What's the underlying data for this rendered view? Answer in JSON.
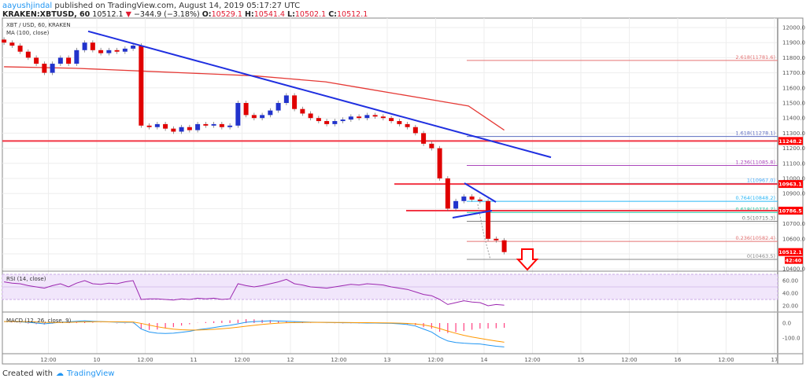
{
  "header": {
    "author": "aayushjindal",
    "published": "published on TradingView.com, August 14, 2019 05:17:27 UTC",
    "symbol": "KRAKEN:XBTUSD, 60",
    "last": "10512.1",
    "change": "−344.9 (−3.18%)",
    "o_label": "O:",
    "o": "10529.1",
    "h_label": "H:",
    "h": "10541.4",
    "l_label": "L:",
    "l": "10502.1",
    "c_label": "C:",
    "c": "10512.1"
  },
  "legend": {
    "title": "XBT / USD, 60, KRAKEN",
    "ma": "MA (100, close)",
    "rsi": "RSI (14, close)",
    "macd": "MACD (12, 26, close, 9)"
  },
  "footer": {
    "created": "Created with",
    "brand": "TradingView"
  },
  "colors": {
    "up": "#2233cc",
    "down": "#e00000",
    "ma": "#e53935",
    "trend": "#1f2fe0",
    "hline": "#f23645",
    "rsi": "#9c27b0",
    "macd": "#2196f3",
    "signal": "#ff9800",
    "hist": "#ff4081"
  },
  "chart_data": {
    "type": "candlestick",
    "interval_shown": "60",
    "price_ticks": [
      12000.0,
      11900.0,
      11800.0,
      11700.0,
      11600.0,
      11500.0,
      11400.0,
      11300.0,
      11200.0,
      11100.0,
      11000.0,
      10900.0,
      10700.0,
      10600.0,
      10400.0
    ],
    "price_ylim": [
      10400,
      12000
    ],
    "time_ticks": [
      "12:00",
      "10",
      "12:00",
      "11",
      "12:00",
      "12",
      "12:00",
      "13",
      "12:00",
      "14",
      "12:00",
      "15",
      "12:00",
      "16",
      "12:00",
      "17"
    ],
    "closes": [
      11900,
      11880,
      11840,
      11800,
      11760,
      11700,
      11760,
      11800,
      11760,
      11850,
      11900,
      11850,
      11830,
      11850,
      11840,
      11860,
      11880,
      11350,
      11340,
      11360,
      11330,
      11310,
      11340,
      11320,
      11360,
      11350,
      11360,
      11340,
      11350,
      11500,
      11420,
      11400,
      11420,
      11450,
      11500,
      11550,
      11460,
      11430,
      11400,
      11380,
      11360,
      11380,
      11390,
      11410,
      11400,
      11420,
      11410,
      11400,
      11380,
      11360,
      11340,
      11300,
      11230,
      11200,
      11000,
      10800,
      10850,
      10880,
      10860,
      10850,
      10600,
      10590,
      10512
    ],
    "ma100": [
      11740,
      11735,
      11730,
      11720,
      11710,
      11700,
      11690,
      11680,
      11660,
      11640,
      11600,
      11560,
      11520,
      11480,
      11320
    ],
    "rsi": [
      58,
      56,
      55,
      52,
      50,
      48,
      52,
      55,
      50,
      56,
      60,
      55,
      54,
      56,
      55,
      58,
      60,
      30,
      31,
      31,
      30,
      29,
      31,
      30,
      32,
      31,
      32,
      30,
      31,
      55,
      52,
      50,
      52,
      55,
      58,
      62,
      55,
      53,
      50,
      49,
      48,
      50,
      52,
      54,
      53,
      55,
      54,
      53,
      50,
      48,
      46,
      42,
      38,
      36,
      30,
      22,
      25,
      28,
      26,
      25,
      20,
      22,
      21
    ],
    "rsi_ticks": [
      60.0,
      40.0,
      20.0
    ],
    "macd": [
      10,
      12,
      8,
      5,
      0,
      -5,
      0,
      5,
      8,
      12,
      15,
      12,
      10,
      8,
      6,
      5,
      5,
      -40,
      -60,
      -68,
      -70,
      -68,
      -62,
      -55,
      -45,
      -38,
      -30,
      -22,
      -15,
      -5,
      5,
      10,
      12,
      15,
      14,
      12,
      10,
      8,
      6,
      5,
      4,
      3,
      2,
      2,
      1,
      0,
      0,
      -1,
      -2,
      -5,
      -10,
      -20,
      -40,
      -60,
      -95,
      -120,
      -130,
      -135,
      -138,
      -140,
      -148,
      -155,
      -160
    ],
    "macd_ticks": [
      0.0,
      -100.0
    ],
    "trendline": {
      "from": [
        "Aug 9 ~21:00",
        11975
      ],
      "to": [
        "Aug 14 ~13:00",
        11140
      ]
    },
    "horizontal_levels": [
      11248.2,
      10963.1,
      10786.5
    ],
    "last_price": "10512.1",
    "countdown": "42:40",
    "fib": [
      {
        "label": "2.618(11781.6)",
        "value": 11781.6,
        "color": "#e57373"
      },
      {
        "label": "1.618(11278.1)",
        "value": 11278.1,
        "color": "#5c6bc0"
      },
      {
        "label": "1.236(11085.8)",
        "value": 11085.8,
        "color": "#ab47bc"
      },
      {
        "label": "1(10967.0)",
        "value": 10967.0,
        "color": "#42a5f5"
      },
      {
        "label": "0.764(10848.2)",
        "value": 10848.2,
        "color": "#29b6f6"
      },
      {
        "label": "0.618(10774.7)",
        "value": 10774.7,
        "color": "#26c6a0"
      },
      {
        "label": "0.5(10715.3)",
        "value": 10715.3,
        "color": "#777777"
      },
      {
        "label": "0.236(10582.4)",
        "value": 10582.4,
        "color": "#e57373"
      },
      {
        "label": "0(10463.5)",
        "value": 10463.5,
        "color": "#888888"
      }
    ]
  }
}
